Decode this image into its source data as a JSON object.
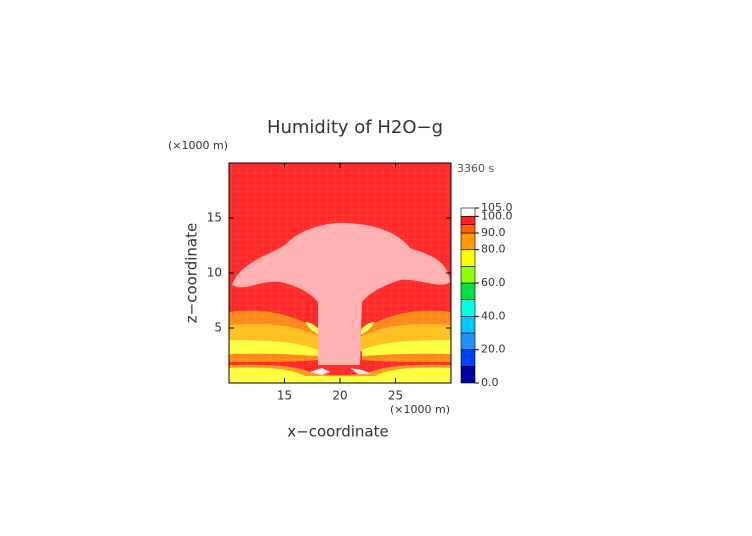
{
  "chart_data": {
    "type": "contour",
    "title": "Humidity of H2O−g",
    "time_label": "3360 s",
    "x_label": "x−coordinate",
    "y_label": "z−coordinate",
    "x_unit": "(×1000 m)",
    "y_unit": "(×1000 m)",
    "xlim": [
      10,
      30
    ],
    "ylim": [
      0,
      20
    ],
    "xticks": [
      15,
      20,
      25
    ],
    "yticks": [
      5,
      10,
      15
    ],
    "colorbar": {
      "levels": [
        0,
        10,
        20,
        30,
        40,
        50,
        60,
        70,
        80,
        90,
        95,
        100,
        105
      ],
      "colors": [
        "#0000a0",
        "#0040ff",
        "#2090ff",
        "#00c8ff",
        "#00ffe0",
        "#00e040",
        "#90ff00",
        "#ffff00",
        "#ff9a00",
        "#ff6000",
        "#ff2020",
        "#ffffff"
      ],
      "ticks": [
        {
          "value": 0,
          "label": "0.0"
        },
        {
          "value": 20,
          "label": "20.0"
        },
        {
          "value": 40,
          "label": "40.0"
        },
        {
          "value": 60,
          "label": "60.0"
        },
        {
          "value": 80,
          "label": "80.0"
        },
        {
          "value": 90,
          "label": "90.0"
        },
        {
          "value": 100,
          "label": "100.0"
        },
        {
          "value": 105,
          "label": "105.0"
        }
      ]
    }
  }
}
